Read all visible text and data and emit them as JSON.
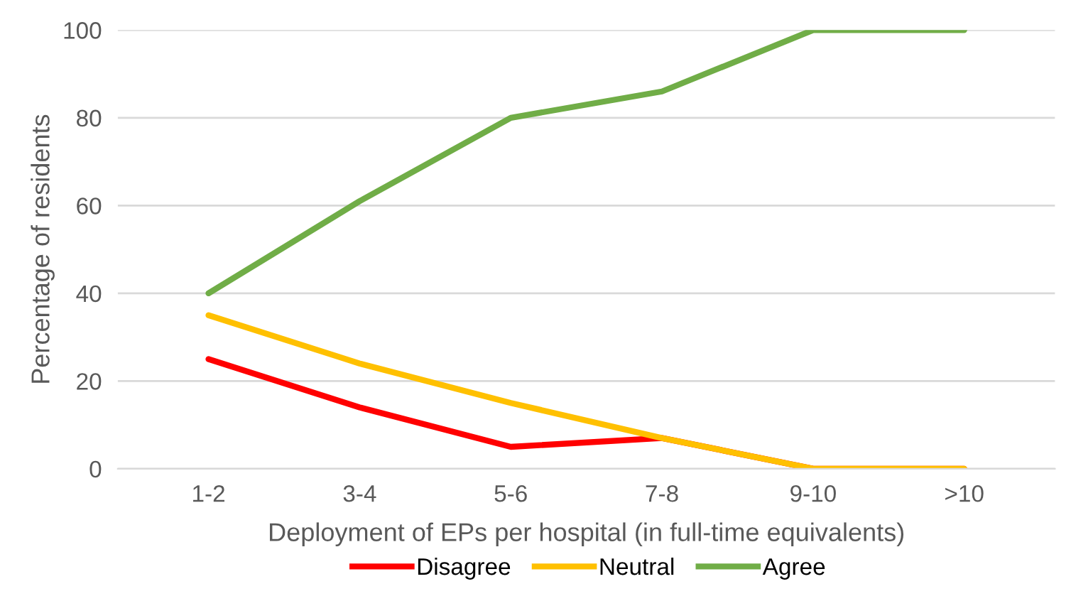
{
  "chart_data": {
    "type": "line",
    "xlabel": "Deployment of EPs per hospital (in full-time equivalents)",
    "ylabel": "Percentage of residents",
    "categories": [
      "1-2",
      "3-4",
      "5-6",
      "7-8",
      "9-10",
      ">10"
    ],
    "series": [
      {
        "name": "Disagree",
        "color": "#ff0000",
        "values": [
          25,
          14,
          5,
          7,
          0,
          0
        ]
      },
      {
        "name": "Neutral",
        "color": "#ffc000",
        "values": [
          35,
          24,
          15,
          7,
          0,
          0
        ]
      },
      {
        "name": "Agree",
        "color": "#70ad47",
        "values": [
          40,
          61,
          80,
          86,
          100,
          100
        ]
      }
    ],
    "ylim": [
      0,
      100
    ],
    "yticks": [
      0,
      20,
      40,
      60,
      80,
      100
    ],
    "grid": "y",
    "legend": "bottom",
    "marker": "none",
    "line_style": "solid"
  }
}
